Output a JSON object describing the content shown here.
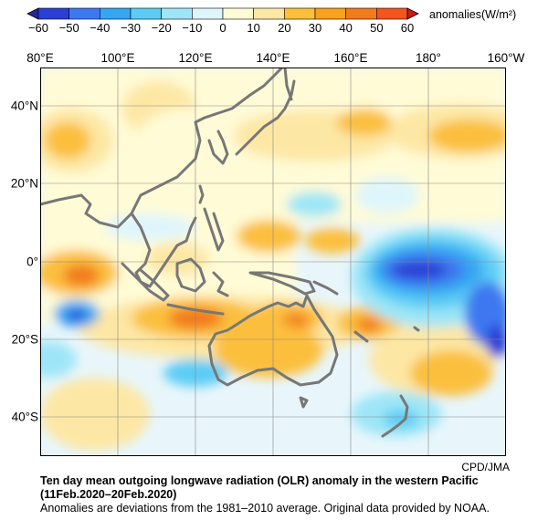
{
  "colorbar": {
    "unit_label": "anomalies(W/m²)",
    "ticks": [
      "−60",
      "−50",
      "−40",
      "−30",
      "−20",
      "−10",
      "0",
      "10",
      "20",
      "30",
      "40",
      "50",
      "60"
    ],
    "bins": [
      "#2a3fd6",
      "#3d78f0",
      "#35a6f2",
      "#5cccf5",
      "#9ee6f7",
      "#def6fb",
      "#fffbd6",
      "#fde7a4",
      "#fbbf3c",
      "#f7a11c",
      "#f27b1c",
      "#f2551e"
    ],
    "end_low": "#23299a",
    "end_high": "#c81c14"
  },
  "axes": {
    "lon_labels": [
      "80°E",
      "100°E",
      "120°E",
      "140°E",
      "160°E",
      "180°",
      "160°W"
    ],
    "lat_labels": [
      "40°N",
      "20°N",
      "0°",
      "20°S",
      "40°S"
    ]
  },
  "map": {
    "background": "#e8f6fb",
    "coast_color": "#777777"
  },
  "credit": "CPD/JMA",
  "caption": {
    "title": "Ten day mean outgoing longwave radiation (OLR) anomaly in the western Pacific",
    "date": "(11Feb.2020–20Feb.2020)",
    "note": "Anomalies are deviations from the 1981–2010 average. Original data provided by NOAA."
  }
}
